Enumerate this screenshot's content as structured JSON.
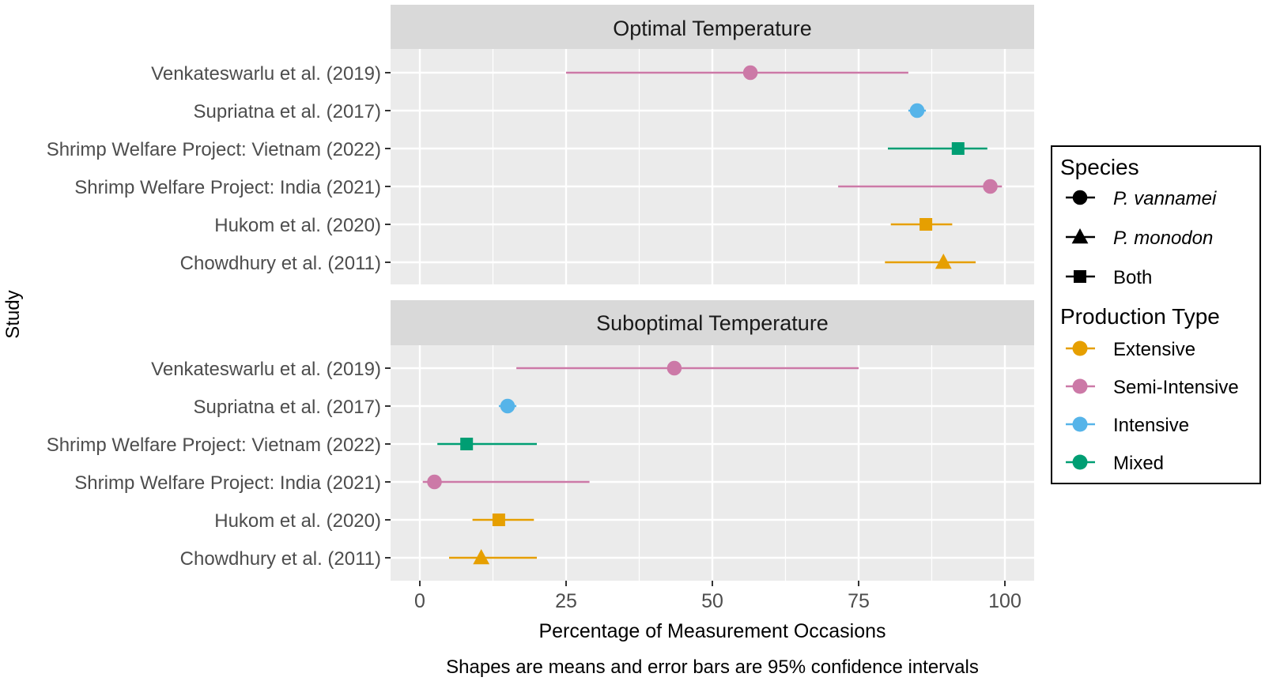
{
  "chart_data": {
    "type": "forest",
    "xlabel": "Percentage of Measurement Occasions",
    "ylabel": "Study",
    "caption": "Shapes are means and error bars are 95% confidence intervals",
    "xlim": [
      -5,
      105
    ],
    "xticks": [
      0,
      25,
      50,
      75,
      100
    ],
    "xtick_labels": [
      "0",
      "25",
      "50",
      "75",
      "100"
    ],
    "studies": [
      "Venkateswarlu et al. (2019)",
      "Supriatna et al. (2017)",
      "Shrimp Welfare Project: Vietnam (2022)",
      "Shrimp Welfare Project: India (2021)",
      "Hukom et al. (2020)",
      "Chowdhury et al. (2011)"
    ],
    "panels": [
      {
        "title": "Optimal Temperature",
        "points": [
          {
            "study": "Venkateswarlu et al. (2019)",
            "mean": 56.5,
            "lower": 25.0,
            "upper": 83.5,
            "species": "P. vannamei",
            "production": "Semi-Intensive"
          },
          {
            "study": "Supriatna et al. (2017)",
            "mean": 85.0,
            "lower": 83.5,
            "upper": 86.5,
            "species": "P. vannamei",
            "production": "Intensive"
          },
          {
            "study": "Shrimp Welfare Project: Vietnam (2022)",
            "mean": 92.0,
            "lower": 80.0,
            "upper": 97.0,
            "species": "Both",
            "production": "Mixed"
          },
          {
            "study": "Shrimp Welfare Project: India (2021)",
            "mean": 97.5,
            "lower": 71.5,
            "upper": 99.5,
            "species": "P. vannamei",
            "production": "Semi-Intensive"
          },
          {
            "study": "Hukom et al. (2020)",
            "mean": 86.5,
            "lower": 80.5,
            "upper": 91.0,
            "species": "Both",
            "production": "Extensive"
          },
          {
            "study": "Chowdhury et al. (2011)",
            "mean": 89.5,
            "lower": 79.5,
            "upper": 95.0,
            "species": "P. monodon",
            "production": "Extensive"
          }
        ]
      },
      {
        "title": "Suboptimal Temperature",
        "points": [
          {
            "study": "Venkateswarlu et al. (2019)",
            "mean": 43.5,
            "lower": 16.5,
            "upper": 75.0,
            "species": "P. vannamei",
            "production": "Semi-Intensive"
          },
          {
            "study": "Supriatna et al. (2017)",
            "mean": 15.0,
            "lower": 13.5,
            "upper": 16.5,
            "species": "P. vannamei",
            "production": "Intensive"
          },
          {
            "study": "Shrimp Welfare Project: Vietnam (2022)",
            "mean": 8.0,
            "lower": 3.0,
            "upper": 20.0,
            "species": "Both",
            "production": "Mixed"
          },
          {
            "study": "Shrimp Welfare Project: India (2021)",
            "mean": 2.5,
            "lower": 0.5,
            "upper": 29.0,
            "species": "P. vannamei",
            "production": "Semi-Intensive"
          },
          {
            "study": "Hukom et al. (2020)",
            "mean": 13.5,
            "lower": 9.0,
            "upper": 19.5,
            "species": "Both",
            "production": "Extensive"
          },
          {
            "study": "Chowdhury et al. (2011)",
            "mean": 10.5,
            "lower": 5.0,
            "upper": 20.0,
            "species": "P. monodon",
            "production": "Extensive"
          }
        ]
      }
    ],
    "legend": {
      "position": "right",
      "species_title": "Species",
      "species": [
        {
          "label": "P. vannamei",
          "shape": "circle",
          "italic": true
        },
        {
          "label": "P. monodon",
          "shape": "triangle",
          "italic": true
        },
        {
          "label": "Both",
          "shape": "square",
          "italic": false
        }
      ],
      "production_title": "Production Type",
      "production": [
        {
          "label": "Extensive",
          "color": "#E69F00"
        },
        {
          "label": "Semi-Intensive",
          "color": "#CC79A7"
        },
        {
          "label": "Intensive",
          "color": "#56B4E9"
        },
        {
          "label": "Mixed",
          "color": "#009E73"
        }
      ]
    }
  }
}
